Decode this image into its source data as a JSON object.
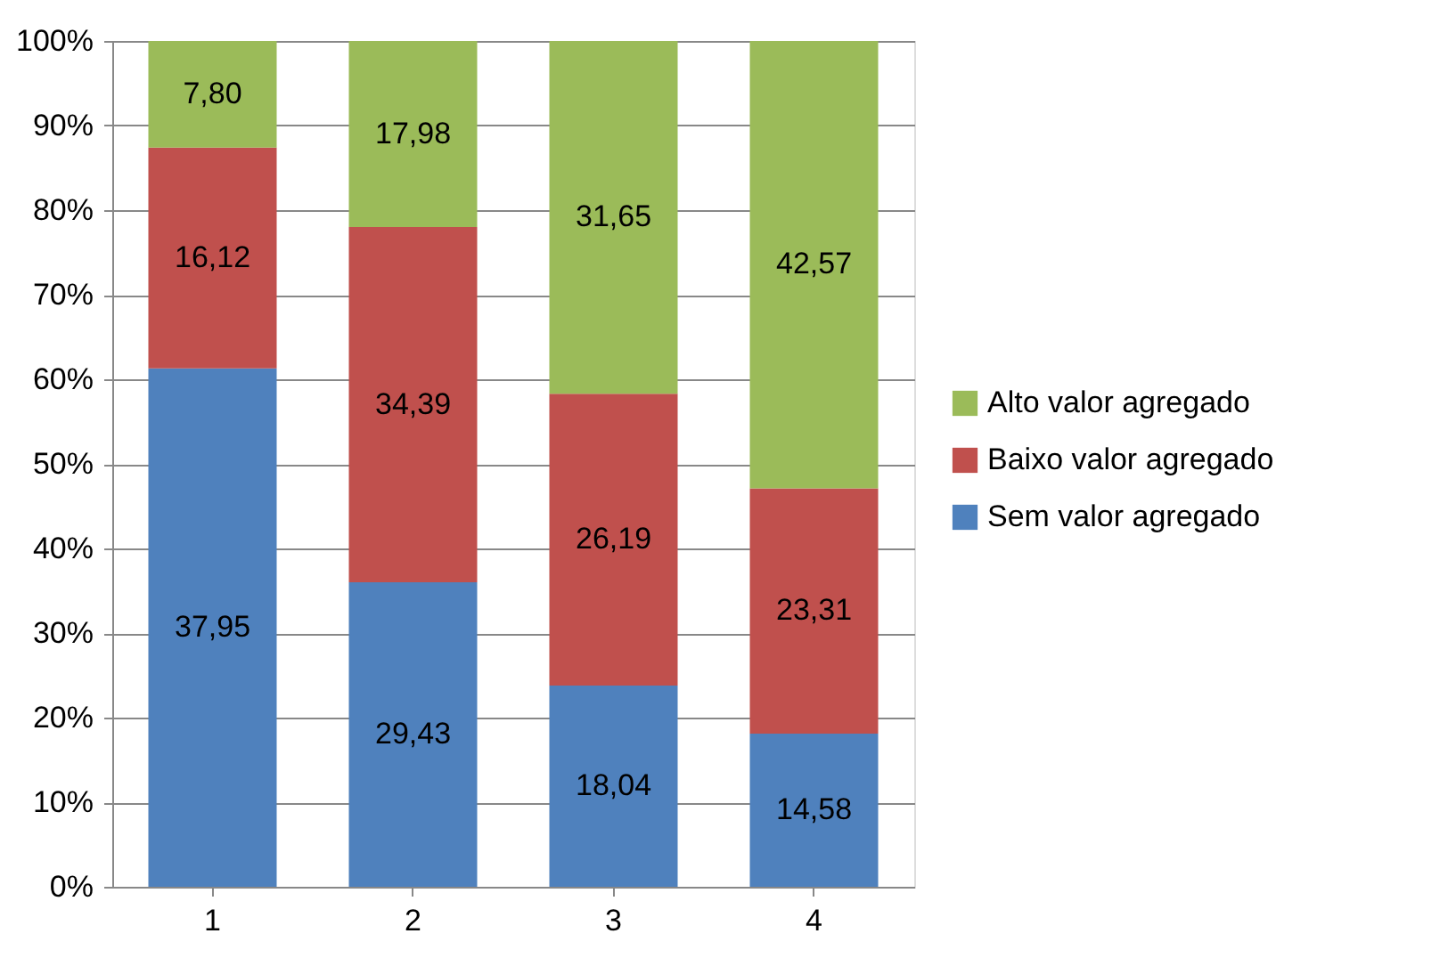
{
  "chart_data": {
    "type": "bar",
    "stacked": true,
    "categories": [
      "1",
      "2",
      "3",
      "4"
    ],
    "series": [
      {
        "name": "Sem valor agregado",
        "color": "#4f81bd",
        "values": [
          61.3,
          36.0,
          23.8,
          18.1
        ]
      },
      {
        "name": "Baixo valor agregado",
        "color": "#c0504d",
        "values": [
          26.1,
          42.0,
          34.5,
          29.0
        ]
      },
      {
        "name": "Alto valor agregado",
        "color": "#9bbb59",
        "values": [
          12.6,
          22.0,
          41.7,
          52.9
        ]
      }
    ],
    "annotations": [
      "37,95",
      "29,43",
      "18,04",
      "14,58",
      "16,12",
      "34,39",
      "26,19",
      "23,31",
      "7,80",
      "17,98",
      "31,65",
      "42,57"
    ],
    "ylim": [
      0,
      100
    ],
    "yticks": [
      {
        "value": 0,
        "label": "0%"
      },
      {
        "value": 10,
        "label": "10%"
      },
      {
        "value": 20,
        "label": "20%"
      },
      {
        "value": 30,
        "label": "30%"
      },
      {
        "value": 40,
        "label": "40%"
      },
      {
        "value": 50,
        "label": "50%"
      },
      {
        "value": 60,
        "label": "60%"
      },
      {
        "value": 70,
        "label": "70%"
      },
      {
        "value": 80,
        "label": "80%"
      },
      {
        "value": 90,
        "label": "90%"
      },
      {
        "value": 100,
        "label": "100%"
      }
    ],
    "grid": "y",
    "legend": "right"
  }
}
